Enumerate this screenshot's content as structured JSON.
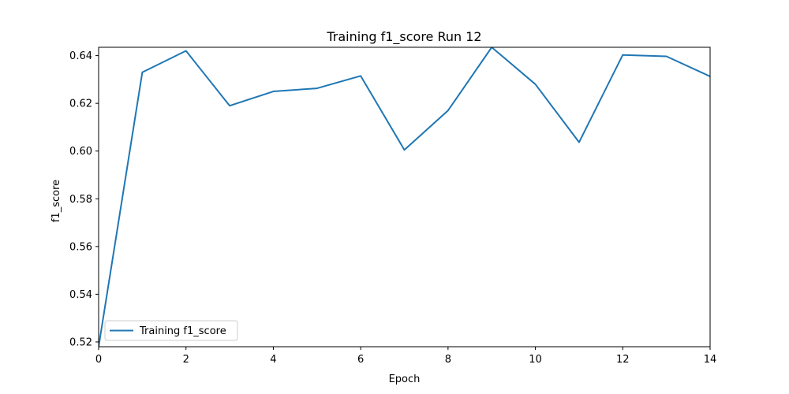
{
  "chart_data": {
    "type": "line",
    "title": "Training f1_score Run 12",
    "xlabel": "Epoch",
    "ylabel": "f1_score",
    "xlim": [
      0,
      14
    ],
    "ylim": [
      0.518,
      0.6435
    ],
    "xticks": [
      0,
      2,
      4,
      6,
      8,
      10,
      12,
      14
    ],
    "xtick_labels": [
      "0",
      "2",
      "4",
      "6",
      "8",
      "10",
      "12",
      "14"
    ],
    "yticks": [
      0.52,
      0.54,
      0.56,
      0.58,
      0.6,
      0.62,
      0.64
    ],
    "ytick_labels": [
      "0.52",
      "0.54",
      "0.56",
      "0.58",
      "0.60",
      "0.62",
      "0.64"
    ],
    "grid": false,
    "legend_position": "lower-left",
    "series": [
      {
        "name": "Training f1_score",
        "color": "#1f77b4",
        "x": [
          0,
          1,
          2,
          3,
          4,
          5,
          6,
          7,
          8,
          9,
          10,
          11,
          12,
          13,
          14
        ],
        "y": [
          0.518,
          0.633,
          0.642,
          0.619,
          0.625,
          0.6263,
          0.6315,
          0.6005,
          0.617,
          0.6435,
          0.628,
          0.6037,
          0.6403,
          0.6397,
          0.6313
        ]
      }
    ]
  }
}
